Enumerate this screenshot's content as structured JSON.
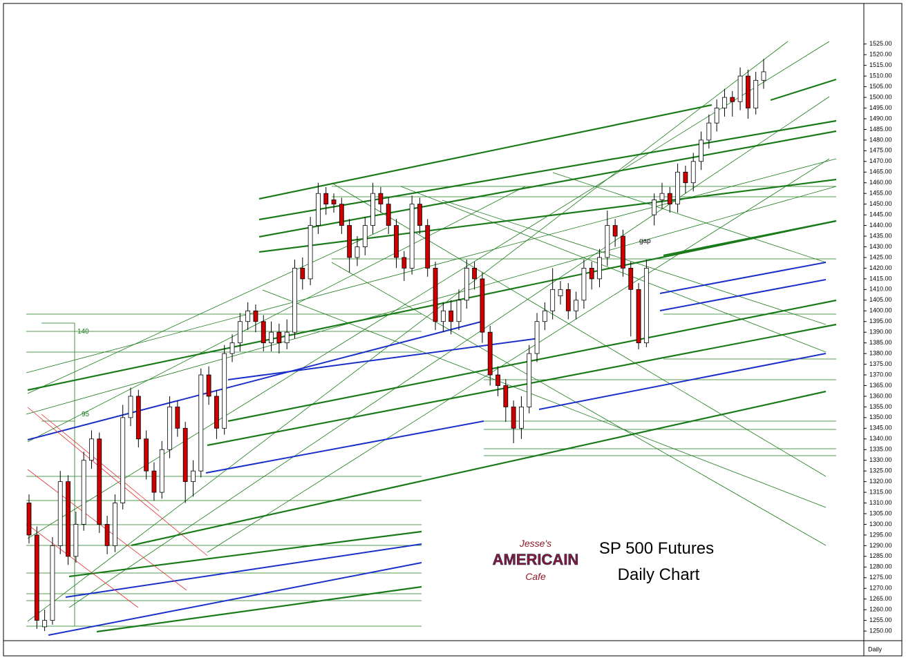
{
  "chart_data": {
    "type": "candlestick",
    "title": "SP 500 Futures",
    "subtitle": "Daily Chart",
    "timeframe": "Daily",
    "annotations": [
      "gap",
      "140",
      "95"
    ],
    "logo": {
      "top": "Jesse's",
      "middle": "AMERICAIN",
      "bottom": "Cafe"
    },
    "up_color": "#ffffff",
    "down_color": "#cc0000",
    "open": [
      1310,
      1295,
      1252,
      1255,
      1290,
      1320,
      1285,
      1300,
      1330,
      1340,
      1300,
      1290,
      1310,
      1350,
      1360,
      1340,
      1325,
      1315,
      1335,
      1355,
      1345,
      1320,
      1325,
      1370,
      1360,
      1345,
      1380,
      1385,
      1395,
      1400,
      1395,
      1385,
      1390,
      1385,
      1390,
      1420,
      1415,
      1440,
      1455,
      1452,
      1450,
      1440,
      1425,
      1430,
      1440,
      1455,
      1450,
      1440,
      1425,
      1420,
      1450,
      1440,
      1420,
      1395,
      1400,
      1395,
      1405,
      1420,
      1415,
      1390,
      1370,
      1365,
      1355,
      1345,
      1355,
      1380,
      1395,
      1400,
      1407,
      1410,
      1400,
      1405,
      1420,
      1415,
      1425,
      1440,
      1435,
      1420,
      1410,
      1385,
      1445,
      1452,
      1455,
      1450,
      1465,
      1460,
      1470,
      1480,
      1488,
      1495,
      1500,
      1498,
      1510,
      1495,
      1508
    ],
    "high": [
      1314,
      1299,
      1260,
      1294,
      1325,
      1323,
      1306,
      1334,
      1344,
      1343,
      1304,
      1314,
      1356,
      1364,
      1363,
      1344,
      1329,
      1339,
      1360,
      1358,
      1348,
      1330,
      1373,
      1374,
      1363,
      1384,
      1389,
      1399,
      1404,
      1403,
      1398,
      1395,
      1394,
      1396,
      1424,
      1425,
      1444,
      1460,
      1458,
      1455,
      1453,
      1443,
      1435,
      1444,
      1460,
      1458,
      1453,
      1443,
      1428,
      1454,
      1453,
      1443,
      1423,
      1404,
      1405,
      1410,
      1424,
      1423,
      1418,
      1393,
      1374,
      1368,
      1358,
      1360,
      1384,
      1399,
      1404,
      1420,
      1414,
      1413,
      1409,
      1424,
      1423,
      1429,
      1447,
      1443,
      1438,
      1423,
      1413,
      1424,
      1455,
      1460,
      1458,
      1469,
      1468,
      1474,
      1484,
      1492,
      1499,
      1504,
      1503,
      1514,
      1513,
      1512,
      1518
    ],
    "low": [
      1291,
      1251,
      1250,
      1253,
      1286,
      1281,
      1282,
      1297,
      1326,
      1296,
      1286,
      1287,
      1307,
      1346,
      1336,
      1321,
      1311,
      1312,
      1331,
      1341,
      1310,
      1313,
      1322,
      1356,
      1340,
      1342,
      1376,
      1381,
      1391,
      1390,
      1381,
      1381,
      1380,
      1382,
      1387,
      1410,
      1412,
      1436,
      1445,
      1446,
      1436,
      1418,
      1421,
      1426,
      1436,
      1446,
      1436,
      1420,
      1414,
      1417,
      1436,
      1416,
      1391,
      1390,
      1389,
      1391,
      1401,
      1410,
      1385,
      1365,
      1360,
      1348,
      1338,
      1340,
      1352,
      1376,
      1391,
      1396,
      1403,
      1396,
      1396,
      1401,
      1410,
      1411,
      1421,
      1430,
      1416,
      1388,
      1382,
      1383,
      1440,
      1448,
      1446,
      1446,
      1455,
      1456,
      1466,
      1476,
      1484,
      1491,
      1491,
      1494,
      1490,
      1492,
      1504
    ],
    "close": [
      1295,
      1255,
      1255,
      1290,
      1320,
      1285,
      1300,
      1330,
      1340,
      1300,
      1290,
      1310,
      1350,
      1360,
      1340,
      1325,
      1315,
      1335,
      1355,
      1345,
      1320,
      1325,
      1370,
      1360,
      1345,
      1380,
      1385,
      1395,
      1400,
      1395,
      1385,
      1390,
      1385,
      1390,
      1420,
      1415,
      1440,
      1455,
      1450,
      1450,
      1440,
      1425,
      1430,
      1440,
      1455,
      1450,
      1440,
      1425,
      1420,
      1450,
      1440,
      1420,
      1395,
      1400,
      1395,
      1405,
      1420,
      1415,
      1390,
      1370,
      1365,
      1355,
      1345,
      1355,
      1380,
      1395,
      1400,
      1410,
      1410,
      1400,
      1405,
      1420,
      1415,
      1425,
      1440,
      1435,
      1420,
      1410,
      1385,
      1420,
      1452,
      1455,
      1450,
      1465,
      1460,
      1470,
      1480,
      1488,
      1495,
      1500,
      1498,
      1510,
      1495,
      1508,
      1512
    ],
    "ylim": [
      1245.5,
      1544
    ],
    "yticks": [
      {
        "value": 1250,
        "label": "1250.00"
      },
      {
        "value": 1255,
        "label": "1255.00"
      },
      {
        "value": 1260,
        "label": "1260.00"
      },
      {
        "value": 1265,
        "label": "1265.00"
      },
      {
        "value": 1270,
        "label": "1270.00"
      },
      {
        "value": 1275,
        "label": "1275.00"
      },
      {
        "value": 1280,
        "label": "1280.00"
      },
      {
        "value": 1285,
        "label": "1285.00"
      },
      {
        "value": 1290,
        "label": "1290.00"
      },
      {
        "value": 1295,
        "label": "1295.00"
      },
      {
        "value": 1300,
        "label": "1300.00"
      },
      {
        "value": 1305,
        "label": "1305.00"
      },
      {
        "value": 1310,
        "label": "1310.00"
      },
      {
        "value": 1315,
        "label": "1315.00"
      },
      {
        "value": 1320,
        "label": "1320.00"
      },
      {
        "value": 1325,
        "label": "1325.00"
      },
      {
        "value": 1330,
        "label": "1330.00"
      },
      {
        "value": 1335,
        "label": "1335.00"
      },
      {
        "value": 1340,
        "label": "1340.00"
      },
      {
        "value": 1345,
        "label": "1345.00"
      },
      {
        "value": 1350,
        "label": "1350.00"
      },
      {
        "value": 1355,
        "label": "1355.00"
      },
      {
        "value": 1360,
        "label": "1360.00"
      },
      {
        "value": 1365,
        "label": "1365.00"
      },
      {
        "value": 1370,
        "label": "1370.00"
      },
      {
        "value": 1375,
        "label": "1375.00"
      },
      {
        "value": 1380,
        "label": "1380.00"
      },
      {
        "value": 1385,
        "label": "1385.00"
      },
      {
        "value": 1390,
        "label": "1390.00"
      },
      {
        "value": 1395,
        "label": "1395.00"
      },
      {
        "value": 1400,
        "label": "1400.00"
      },
      {
        "value": 1405,
        "label": "1405.00"
      },
      {
        "value": 1410,
        "label": "1410.00"
      },
      {
        "value": 1415,
        "label": "1415.00"
      },
      {
        "value": 1420,
        "label": "1420.00"
      },
      {
        "value": 1425,
        "label": "1425.00"
      },
      {
        "value": 1430,
        "label": "1430.00"
      },
      {
        "value": 1435,
        "label": "1435.00"
      },
      {
        "value": 1440,
        "label": "1440.00"
      },
      {
        "value": 1445,
        "label": "1445.00"
      },
      {
        "value": 1450,
        "label": "1450.00"
      },
      {
        "value": 1455,
        "label": "1455.00"
      },
      {
        "value": 1460,
        "label": "1460.00"
      },
      {
        "value": 1465,
        "label": "1465.00"
      },
      {
        "value": 1470,
        "label": "1470.00"
      },
      {
        "value": 1475,
        "label": "1475.00"
      },
      {
        "value": 1480,
        "label": "1480.00"
      },
      {
        "value": 1485,
        "label": "1485.00"
      },
      {
        "value": 1490,
        "label": "1490.00"
      },
      {
        "value": 1495,
        "label": "1495.00"
      },
      {
        "value": 1500,
        "label": "1500.00"
      },
      {
        "value": 1505,
        "label": "1505.00"
      },
      {
        "value": 1510,
        "label": "1510.00"
      },
      {
        "value": 1515,
        "label": "1515.00"
      },
      {
        "value": 1520,
        "label": "1520.00"
      },
      {
        "value": 1525,
        "label": "1525.00"
      }
    ]
  }
}
